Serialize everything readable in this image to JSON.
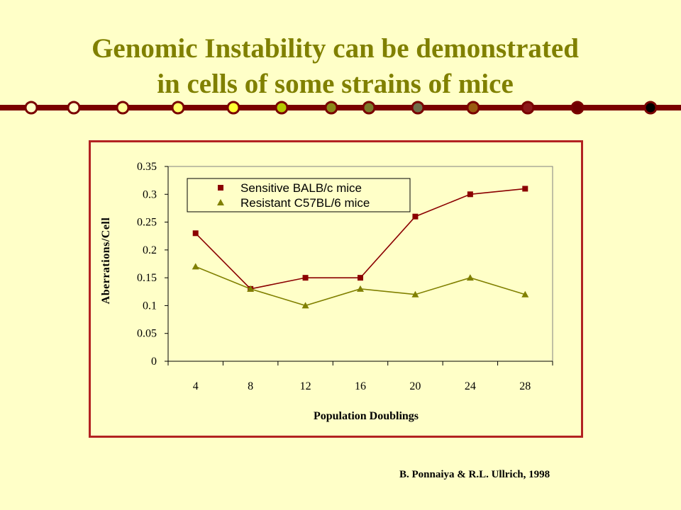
{
  "slide": {
    "title_line1": "Genomic Instability can be demonstrated",
    "title_line2": "in cells of some strains of mice",
    "credit": "B. Ponnaiya & R.L. Ullrich,  1998",
    "colors": {
      "background": "#ffffc8",
      "title": "#808000",
      "frame": "#b22222",
      "rule": "#7a0000"
    },
    "rule_dots": [
      "#ffffc8",
      "#ffffc8",
      "#ffff99",
      "#ffff66",
      "#ffff33",
      "#b5c900",
      "#8a8a1a",
      "#7a7a2a",
      "#6e6e4a",
      "#9a5a10",
      "#8b1a1a",
      "#6e0000",
      "#000000"
    ]
  },
  "chart_data": {
    "type": "line",
    "x": [
      4,
      8,
      12,
      16,
      20,
      24,
      28
    ],
    "xlabel": "Population Doublings",
    "ylabel": "Aberrations/Cell",
    "ylim": [
      0,
      0.35
    ],
    "yticks": [
      "0",
      "0.05",
      "0.1",
      "0.15",
      "0.2",
      "0.25",
      "0.3",
      "0.35"
    ],
    "ytick_values": [
      0,
      0.05,
      0.1,
      0.15,
      0.2,
      0.25,
      0.3,
      0.35
    ],
    "grid": false,
    "legend_position": "top-left",
    "series": [
      {
        "name": "Sensitive BALB/c mice",
        "marker": "square",
        "color": "#8b0000",
        "values": [
          0.23,
          0.13,
          0.15,
          0.15,
          0.26,
          0.3,
          0.31
        ]
      },
      {
        "name": "Resistant C57BL/6 mice",
        "marker": "triangle",
        "color": "#808000",
        "values": [
          0.17,
          0.13,
          0.1,
          0.13,
          0.12,
          0.15,
          0.12
        ]
      }
    ]
  }
}
